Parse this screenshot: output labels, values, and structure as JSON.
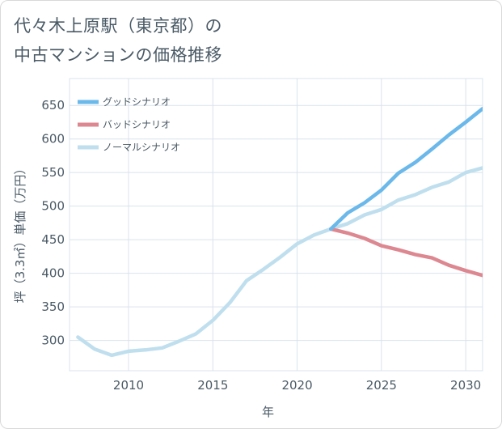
{
  "title": {
    "line1": "代々木上原駅（東京都）の",
    "line2": "中古マンションの価格推移"
  },
  "chart_data": {
    "type": "line",
    "title": "代々木上原駅（東京都）の中古マンションの価格推移",
    "xlabel": "年",
    "ylabel": "坪（3.3㎡）単価（万円）",
    "xlim": [
      2006.5,
      2031
    ],
    "ylim": [
      255,
      690
    ],
    "xticks": [
      2010,
      2015,
      2020,
      2025,
      2030
    ],
    "yticks": [
      300,
      350,
      400,
      450,
      500,
      550,
      600,
      650
    ],
    "grid": true,
    "legend_position": "top-left",
    "series": [
      {
        "name": "グッドシナリオ",
        "color": "#6bb8ea",
        "x": [
          2022,
          2023,
          2024,
          2025,
          2026,
          2027,
          2028,
          2029,
          2030,
          2031
        ],
        "y": [
          466,
          490,
          505,
          524,
          549,
          565,
          585,
          606,
          625,
          645
        ]
      },
      {
        "name": "バッドシナリオ",
        "color": "#dd8891",
        "x": [
          2022,
          2023,
          2024,
          2025,
          2026,
          2027,
          2028,
          2029,
          2030,
          2031
        ],
        "y": [
          466,
          460,
          452,
          441,
          435,
          428,
          423,
          412,
          404,
          397
        ]
      },
      {
        "name": "ノーマルシナリオ",
        "color": "#c0dfee",
        "x": [
          2007,
          2008,
          2009,
          2010,
          2011,
          2012,
          2013,
          2014,
          2015,
          2016,
          2017,
          2018,
          2019,
          2020,
          2021,
          2022,
          2023,
          2024,
          2025,
          2026,
          2027,
          2028,
          2029,
          2030,
          2031
        ],
        "y": [
          305,
          287,
          278,
          284,
          286,
          289,
          299,
          310,
          330,
          356,
          389,
          406,
          424,
          444,
          457,
          466,
          474,
          487,
          495,
          509,
          517,
          528,
          536,
          550,
          557
        ]
      }
    ]
  }
}
